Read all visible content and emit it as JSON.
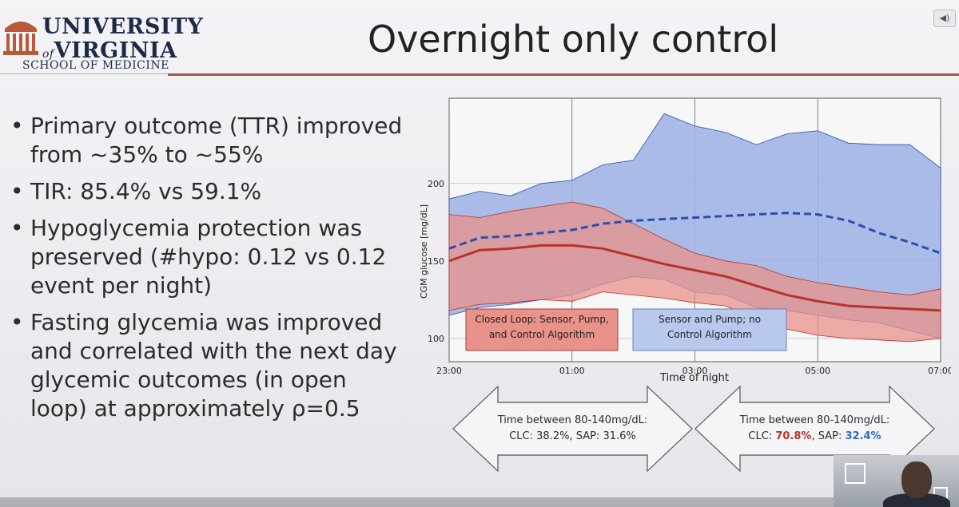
{
  "logo": {
    "university_line": "UNIVERSITY",
    "of": "of",
    "virginia_line": "VIRGINIA",
    "school": "SCHOOL OF MEDICINE"
  },
  "slide_title": "Overnight only control",
  "bullets": [
    "Primary outcome (TTR) improved from ~35% to ~55%",
    "TIR: 85.4% vs 59.1%",
    "Hypoglycemia protection was preserved (#hypo: 0.12 vs 0.12 event per night)",
    "Fasting glycemia was improved and correlated with the next day glycemic outcomes (in open loop) at approximately ρ=0.5"
  ],
  "chart_data": {
    "type": "area",
    "xlabel": "Time of night",
    "ylabel": "CGM glucose [mg/dL]",
    "x_ticks": [
      "23:00",
      "01:00",
      "03:00",
      "05:00",
      "07:00"
    ],
    "y_ticks": [
      100,
      150,
      200
    ],
    "ylim": [
      85,
      255
    ],
    "x_hours": [
      0,
      0.5,
      1,
      1.5,
      2,
      2.5,
      3,
      3.5,
      4,
      4.5,
      5,
      5.5,
      6,
      6.5,
      7,
      7.5,
      8
    ],
    "series": [
      {
        "name": "Closed Loop: Sensor, Pump, and Control Algorithm",
        "color": "#b8332a",
        "fill": "#e8928a",
        "median": [
          150,
          157,
          158,
          160,
          160,
          158,
          153,
          148,
          144,
          140,
          134,
          128,
          124,
          121,
          120,
          119,
          118
        ],
        "upper": [
          180,
          178,
          182,
          185,
          188,
          184,
          174,
          164,
          155,
          150,
          147,
          140,
          136,
          133,
          130,
          128,
          132
        ],
        "lower": [
          118,
          122,
          123,
          125,
          124,
          130,
          128,
          126,
          123,
          121,
          112,
          106,
          102,
          100,
          99,
          98,
          100
        ]
      },
      {
        "name": "Sensor and Pump; no Control Algorithm",
        "color": "#2a4fb0",
        "fill": "#9db0e4",
        "median": [
          158,
          165,
          166,
          168,
          170,
          174,
          176,
          177,
          178,
          179,
          180,
          181,
          180,
          176,
          168,
          162,
          155
        ],
        "upper": [
          190,
          195,
          192,
          200,
          202,
          212,
          215,
          245,
          237,
          233,
          225,
          232,
          234,
          226,
          225,
          225,
          210
        ],
        "lower": [
          115,
          120,
          122,
          125,
          128,
          135,
          140,
          138,
          130,
          128,
          120,
          118,
          115,
          112,
          110,
          105,
          100
        ]
      }
    ],
    "legend": [
      "Closed Loop: Sensor, Pump, and Control Algorithm",
      "Sensor and Pump; no Control Algorithm"
    ]
  },
  "arrows": {
    "left": {
      "line1": "Time between 80-140mg/dL:",
      "line2": "CLC: 38.2%, SAP: 31.6%"
    },
    "right": {
      "line1": "Time between 80-140mg/dL:",
      "clc_label": "CLC: ",
      "clc_value": "70.8%",
      "sap_label": ", SAP: ",
      "sap_value": "32.4%",
      "clc_color": "#b8332a",
      "sap_color": "#2a6cc0"
    }
  }
}
